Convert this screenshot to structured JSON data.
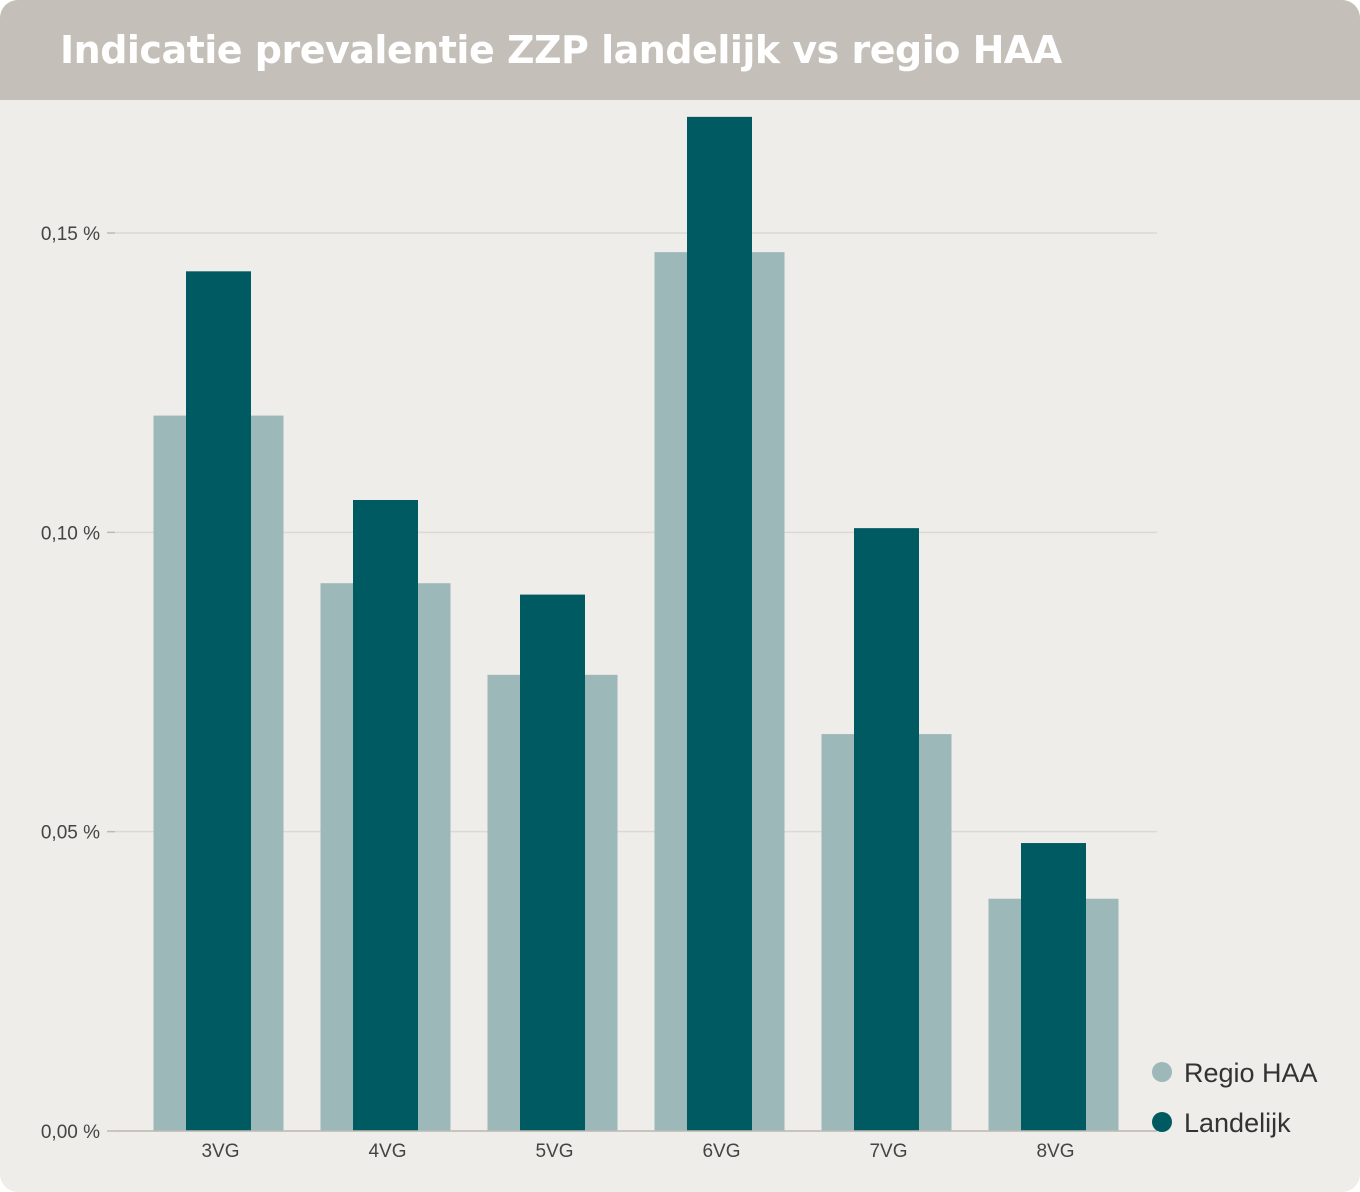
{
  "title": "Indicatie prevalentie ZZP landelijk vs regio HAA",
  "colors": {
    "header": "#c4bfb8",
    "background": "#efede9",
    "regio": "#9cb8b9",
    "landelijk": "#005a61",
    "grid": "#dcd9d4"
  },
  "chart_data": {
    "type": "bar",
    "title": "Indicatie prevalentie ZZP landelijk vs regio HAA",
    "categories": [
      "3VG",
      "4VG",
      "5VG",
      "6VG",
      "7VG",
      "8VG"
    ],
    "series": [
      {
        "name": "Regio HAA",
        "values": [
          0.1195,
          0.0915,
          0.0762,
          0.1468,
          0.0663,
          0.0388
        ]
      },
      {
        "name": "Landelijk",
        "values": [
          0.1436,
          0.1054,
          0.0896,
          0.1694,
          0.1007,
          0.0481
        ]
      }
    ],
    "yticks": [
      "0,00 %",
      "0,05 %",
      "0,10 %",
      "0,15 %"
    ],
    "ylim": [
      0,
      0.17
    ],
    "xlabel": "",
    "ylabel": "",
    "grid": true,
    "legend": "bottom-right",
    "overlapping_bars": true
  }
}
